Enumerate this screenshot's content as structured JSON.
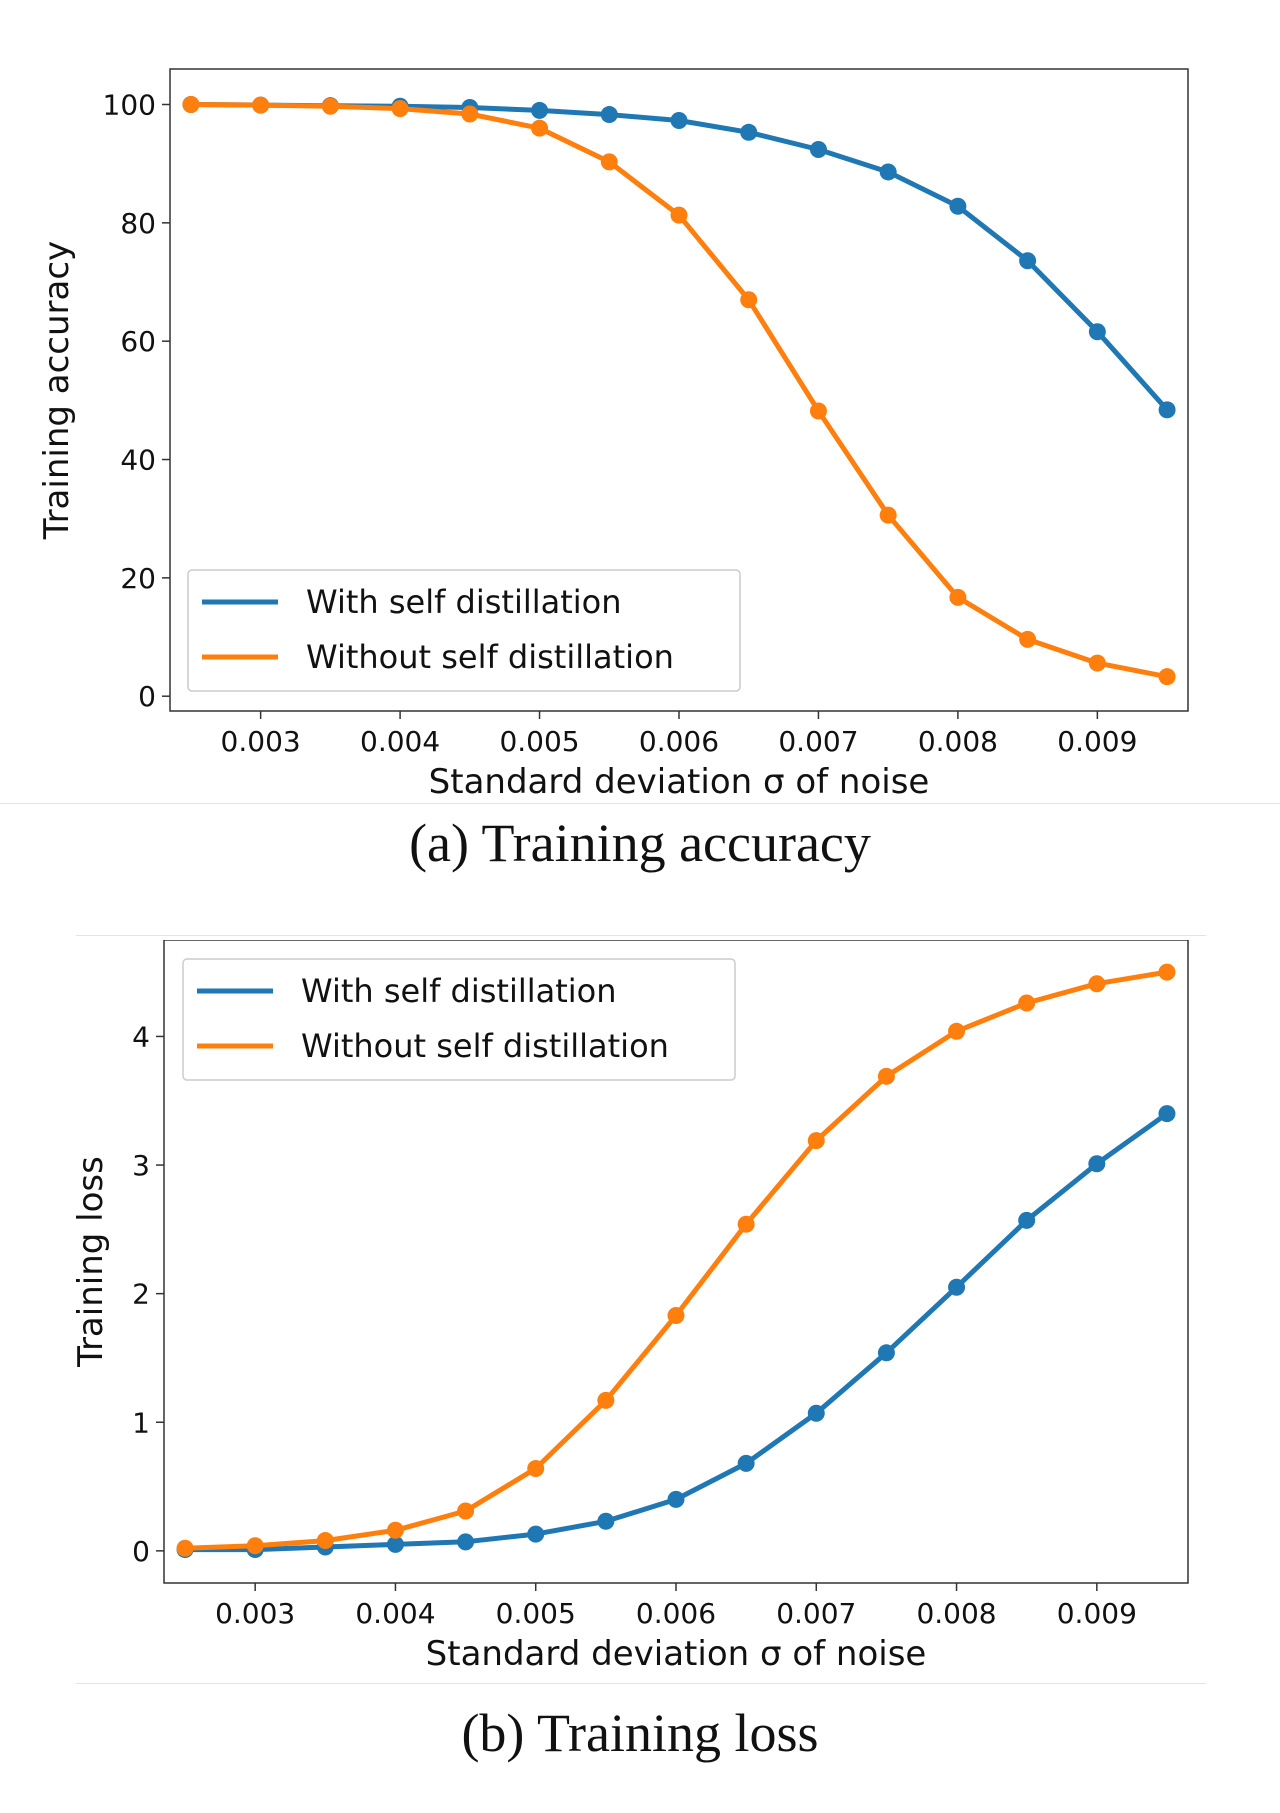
{
  "colors": {
    "with": "#1f77b4",
    "without": "#ff7f0e"
  },
  "chart_data": [
    {
      "type": "line",
      "title": "",
      "caption": "(a) Training accuracy",
      "xlabel": "Standard deviation σ of noise",
      "ylabel": "Training accuracy",
      "xlim": [
        0.00235,
        0.00965
      ],
      "ylim": [
        -2.5,
        106
      ],
      "xticks": [
        0.003,
        0.004,
        0.005,
        0.006,
        0.007,
        0.008,
        0.009
      ],
      "xticklabels": [
        "0.003",
        "0.004",
        "0.005",
        "0.006",
        "0.007",
        "0.008",
        "0.009"
      ],
      "yticks": [
        0,
        20,
        40,
        60,
        80,
        100
      ],
      "yticklabels": [
        "0",
        "20",
        "40",
        "60",
        "80",
        "100"
      ],
      "legend_position": "lower-left",
      "x": [
        0.0025,
        0.003,
        0.0035,
        0.004,
        0.0045,
        0.005,
        0.0055,
        0.006,
        0.0065,
        0.007,
        0.0075,
        0.008,
        0.0085,
        0.009,
        0.0095
      ],
      "series": [
        {
          "name": "With self distillation",
          "color": "#1f77b4",
          "values": [
            100,
            99.9,
            99.8,
            99.7,
            99.5,
            99.0,
            98.3,
            97.3,
            95.3,
            92.4,
            88.6,
            82.8,
            73.6,
            61.6,
            48.4
          ]
        },
        {
          "name": "Without self distillation",
          "color": "#ff7f0e",
          "values": [
            100,
            99.9,
            99.7,
            99.3,
            98.4,
            96.0,
            90.3,
            81.3,
            67.0,
            48.2,
            30.6,
            16.7,
            9.6,
            5.6,
            3.3
          ]
        }
      ]
    },
    {
      "type": "line",
      "title": "",
      "caption": "(b) Training loss",
      "xlabel": "Standard deviation σ of noise",
      "ylabel": "Training loss",
      "xlim": [
        0.00235,
        0.00965
      ],
      "ylim": [
        -0.25,
        4.75
      ],
      "xticks": [
        0.003,
        0.004,
        0.005,
        0.006,
        0.007,
        0.008,
        0.009
      ],
      "xticklabels": [
        "0.003",
        "0.004",
        "0.005",
        "0.006",
        "0.007",
        "0.008",
        "0.009"
      ],
      "yticks": [
        0,
        1,
        2,
        3,
        4
      ],
      "yticklabels": [
        "0",
        "1",
        "2",
        "3",
        "4"
      ],
      "legend_position": "upper-left",
      "x": [
        0.0025,
        0.003,
        0.0035,
        0.004,
        0.0045,
        0.005,
        0.0055,
        0.006,
        0.0065,
        0.007,
        0.0075,
        0.008,
        0.0085,
        0.009,
        0.0095
      ],
      "series": [
        {
          "name": "With self distillation",
          "color": "#1f77b4",
          "values": [
            0.01,
            0.01,
            0.03,
            0.05,
            0.07,
            0.13,
            0.23,
            0.4,
            0.68,
            1.07,
            1.54,
            2.05,
            2.57,
            3.01,
            3.4
          ]
        },
        {
          "name": "Without self distillation",
          "color": "#ff7f0e",
          "values": [
            0.02,
            0.04,
            0.08,
            0.16,
            0.31,
            0.64,
            1.17,
            1.83,
            2.54,
            3.19,
            3.69,
            4.04,
            4.26,
            4.41,
            4.5
          ]
        }
      ]
    }
  ]
}
